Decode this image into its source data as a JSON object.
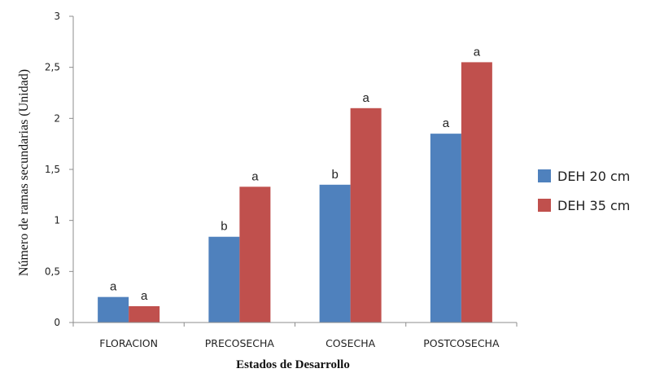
{
  "chart_data": {
    "type": "bar",
    "categories": [
      "FLORACION",
      "PRECOSECHA",
      "COSECHA",
      "POSTCOSECHA"
    ],
    "series": [
      {
        "name": "DEH 20 cm",
        "color": "#4f81bd",
        "values": [
          0.25,
          0.84,
          1.35,
          1.85
        ],
        "labels": [
          "a",
          "b",
          "b",
          "a"
        ]
      },
      {
        "name": "DEH 35 cm",
        "color": "#c0504d",
        "values": [
          0.16,
          1.33,
          2.1,
          2.55
        ],
        "labels": [
          "a",
          "a",
          "a",
          "a"
        ]
      }
    ],
    "xlabel": "Estados  de Desarrollo",
    "ylabel": "Número de ramas secundarias (Unidad)",
    "ylim": [
      0,
      3
    ],
    "yticks": [
      "0",
      "0,5",
      "1",
      "1,5",
      "2",
      "2,5",
      "3"
    ],
    "grid": false,
    "legend_position": "right"
  }
}
